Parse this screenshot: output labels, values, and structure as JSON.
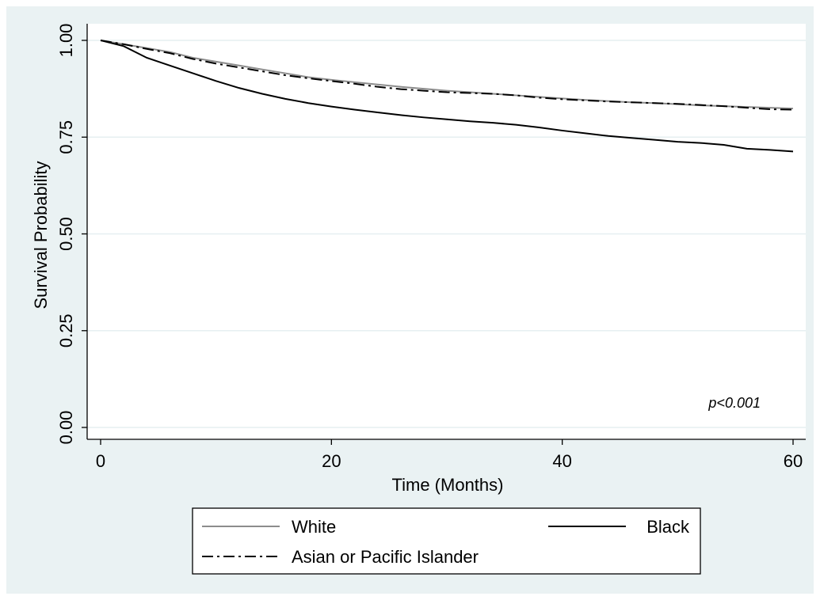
{
  "chart_data": {
    "type": "line",
    "x_label": "Time (Months)",
    "y_label": "Survival Probability",
    "annotation": "p<0.001",
    "x": [
      0,
      2,
      4,
      6,
      8,
      10,
      12,
      14,
      16,
      18,
      20,
      22,
      24,
      26,
      28,
      30,
      32,
      34,
      36,
      38,
      40,
      42,
      44,
      46,
      48,
      50,
      52,
      54,
      56,
      58,
      60
    ],
    "series": [
      {
        "name": "White",
        "color": "#8c8c8c",
        "linestyle": "solid",
        "values": [
          1.0,
          0.99,
          0.98,
          0.97,
          0.955,
          0.945,
          0.935,
          0.925,
          0.915,
          0.905,
          0.898,
          0.892,
          0.886,
          0.88,
          0.875,
          0.87,
          0.866,
          0.862,
          0.858,
          0.854,
          0.85,
          0.846,
          0.843,
          0.84,
          0.838,
          0.835,
          0.832,
          0.83,
          0.828,
          0.826,
          0.824
        ]
      },
      {
        "name": "Black",
        "color": "#000000",
        "linestyle": "solid",
        "values": [
          1.0,
          0.985,
          0.955,
          0.935,
          0.915,
          0.895,
          0.877,
          0.862,
          0.849,
          0.838,
          0.829,
          0.821,
          0.814,
          0.807,
          0.801,
          0.796,
          0.791,
          0.787,
          0.782,
          0.775,
          0.767,
          0.76,
          0.753,
          0.748,
          0.743,
          0.738,
          0.735,
          0.73,
          0.72,
          0.717,
          0.713
        ]
      },
      {
        "name": "Asian or Pacific Islander",
        "color": "#000000",
        "linestyle": "dashdot",
        "values": [
          1.0,
          0.99,
          0.978,
          0.967,
          0.952,
          0.94,
          0.93,
          0.92,
          0.91,
          0.902,
          0.895,
          0.888,
          0.88,
          0.874,
          0.87,
          0.866,
          0.864,
          0.862,
          0.858,
          0.852,
          0.848,
          0.845,
          0.842,
          0.84,
          0.838,
          0.836,
          0.833,
          0.83,
          0.826,
          0.822,
          0.821
        ]
      }
    ],
    "xlim": [
      0,
      60
    ],
    "xticks": [
      0,
      20,
      40,
      60
    ],
    "ylim": [
      0,
      1
    ],
    "yticks": [
      {
        "value": 0,
        "label": "0.00"
      },
      {
        "value": 0.25,
        "label": "0.25"
      },
      {
        "value": 0.5,
        "label": "0.50"
      },
      {
        "value": 0.75,
        "label": "0.75"
      },
      {
        "value": 1,
        "label": "1.00"
      }
    ],
    "grid": true,
    "legend": "bottom",
    "legend_columns": 2
  }
}
